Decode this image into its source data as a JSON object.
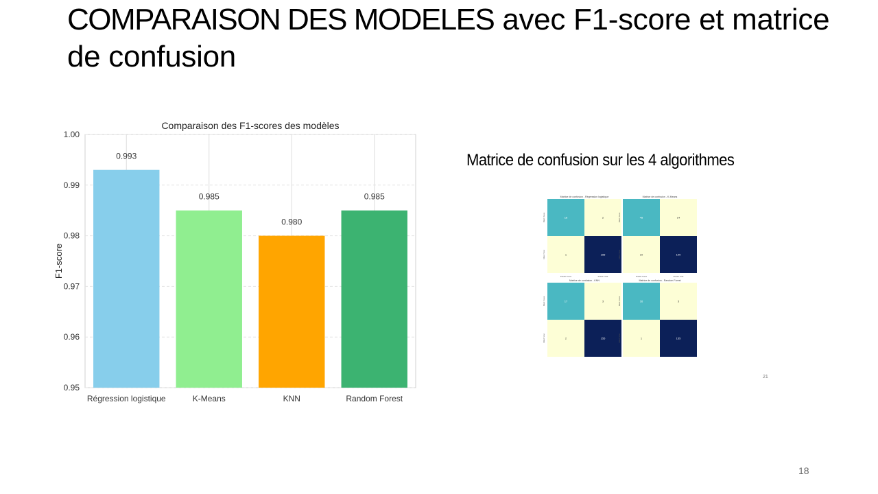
{
  "slide": {
    "title_caps": "COMPARAISON DES MODELES",
    "title_rest": "avec F1-score et matrice de confusion",
    "page_number": "18"
  },
  "chart_data": {
    "type": "bar",
    "title": "Comparaison des F1-scores des modèles",
    "xlabel": "",
    "ylabel": "F1-score",
    "categories": [
      "Régression logistique",
      "K-Means",
      "KNN",
      "Random Forest"
    ],
    "values": [
      0.993,
      0.985,
      0.98,
      0.985
    ],
    "value_labels": [
      "0.993",
      "0.985",
      "0.980",
      "0.985"
    ],
    "bar_colors": [
      "#87ceeb",
      "#90ee90",
      "#ffa500",
      "#3cb371"
    ],
    "ylim": [
      0.95,
      1.0
    ],
    "yticks": [
      0.95,
      0.96,
      0.97,
      0.98,
      0.99,
      1.0
    ],
    "ytick_labels": [
      "0.95",
      "0.96",
      "0.97",
      "0.98",
      "0.99",
      "1.00"
    ],
    "grid": true
  },
  "confusion": {
    "heading": "Matrice de confusion sur les 4 algorithmes",
    "inner_page": "21",
    "colors": {
      "dark": "#0c2058",
      "mid": "#4ab8c2",
      "light": "#fdfed6"
    },
    "matrices": [
      {
        "title": "Matrice de confusion - Régression logistique",
        "cells": [
          "16",
          "2",
          "1",
          "155"
        ],
        "shades": [
          "mid",
          "light",
          "light",
          "dark"
        ]
      },
      {
        "title": "Matrice de confusion - K-Means",
        "cells": [
          "45",
          "14",
          "10",
          "100"
        ],
        "shades": [
          "mid",
          "light",
          "light",
          "dark"
        ]
      },
      {
        "title": "Matrice de confusion - KNN",
        "cells": [
          "17",
          "3",
          "2",
          "155"
        ],
        "shades": [
          "mid",
          "light",
          "light",
          "dark"
        ]
      },
      {
        "title": "Matrice de confusion - Random Forest",
        "cells": [
          "16",
          "3",
          "1",
          "155"
        ],
        "shades": [
          "mid",
          "light",
          "light",
          "dark"
        ]
      }
    ],
    "x_labels": [
      "Prédit: Faux",
      "Prédit: Vrai"
    ],
    "y_labels": [
      "Réel: Faux",
      "Réel: Vrai"
    ]
  }
}
